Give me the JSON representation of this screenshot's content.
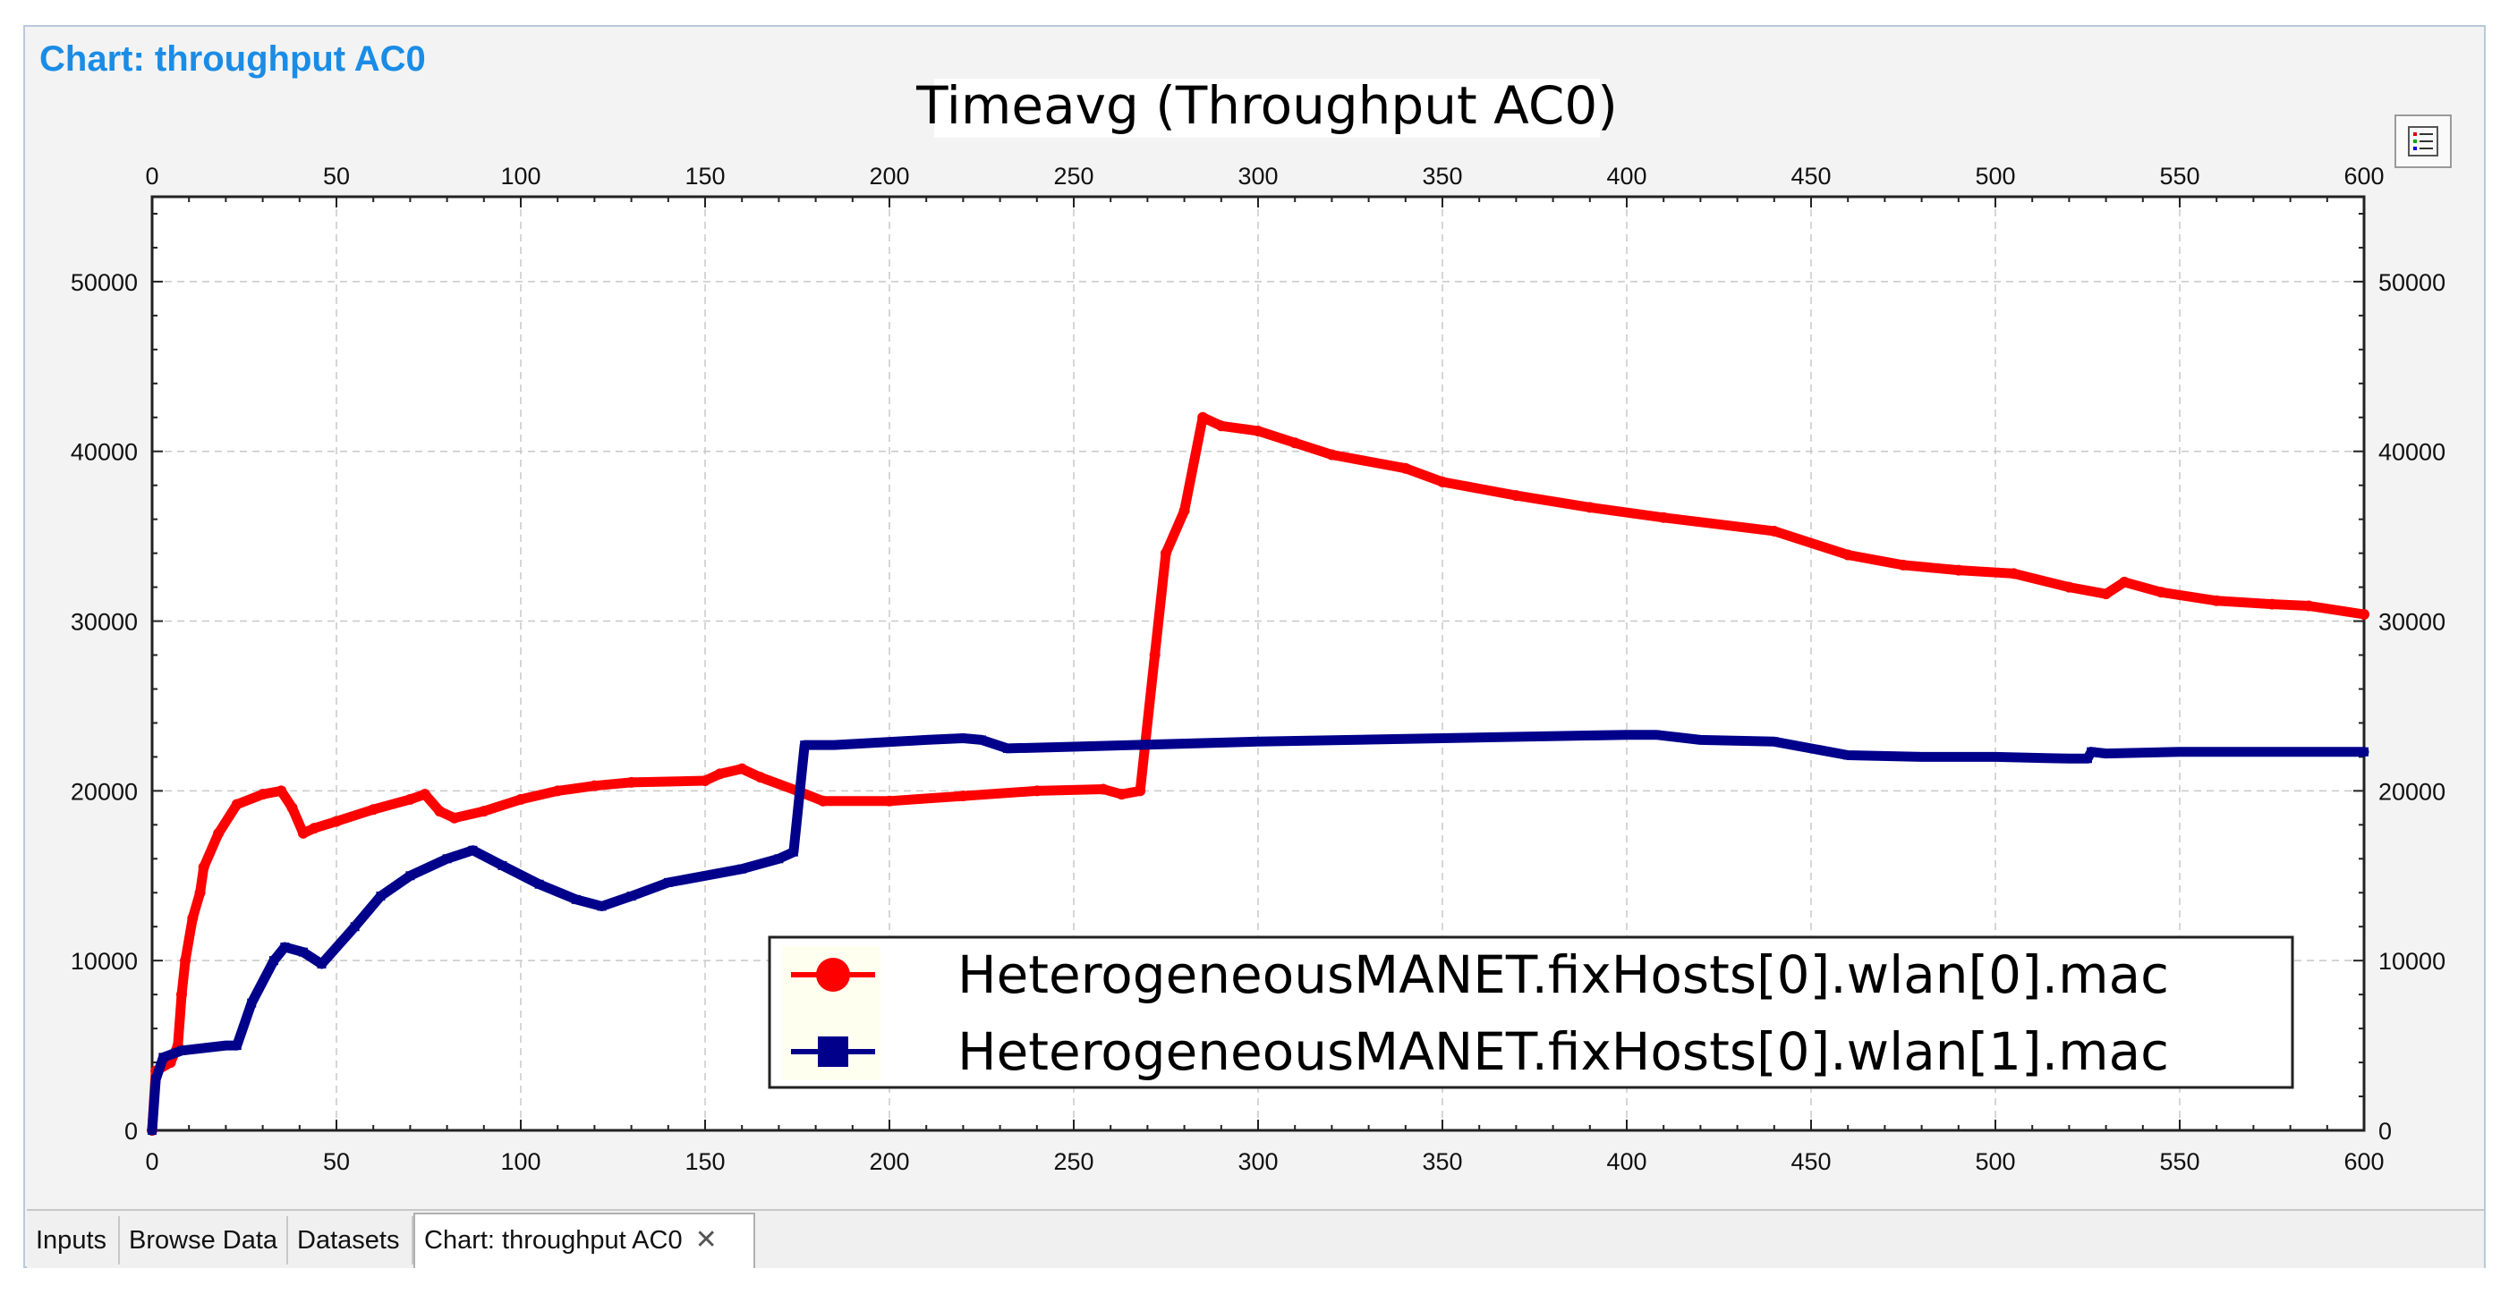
{
  "panel_title": "Chart: throughput AC0",
  "tabs": [
    {
      "label": "Inputs"
    },
    {
      "label": "Browse Data"
    },
    {
      "label": "Datasets"
    },
    {
      "label": "Chart: throughput AC0",
      "active": true
    }
  ],
  "legend_button_icon": "legend-list-icon",
  "close_icon": "close-x-icon",
  "colors": {
    "series0": "#ff0000",
    "series1": "#00008b",
    "grid": "#c8c8c8",
    "plot_bg": "#ffffff"
  },
  "chart_data": {
    "type": "line",
    "title": "Timeavg (Throughput AC0)",
    "xlabel": "",
    "ylabel": "",
    "xlim": [
      0,
      600
    ],
    "ylim": [
      0,
      55000
    ],
    "x_ticks": [
      0,
      50,
      100,
      150,
      200,
      250,
      300,
      350,
      400,
      450,
      500,
      550,
      600
    ],
    "y_ticks": [
      0,
      10000,
      20000,
      30000,
      40000,
      50000
    ],
    "grid": true,
    "legend_position": "bottom-right",
    "series": [
      {
        "name": "HeterogeneousMANET.fixHosts[0].wlan[0].mac",
        "color": "#ff0000",
        "marker": "circle",
        "points": [
          [
            0,
            0
          ],
          [
            1,
            3500
          ],
          [
            5,
            4000
          ],
          [
            7,
            5000
          ],
          [
            8,
            8000
          ],
          [
            9,
            10000
          ],
          [
            11,
            12500
          ],
          [
            13,
            14000
          ],
          [
            14,
            15500
          ],
          [
            18,
            17500
          ],
          [
            23,
            19200
          ],
          [
            30,
            19800
          ],
          [
            35,
            20000
          ],
          [
            38,
            19000
          ],
          [
            41,
            17500
          ],
          [
            44,
            17800
          ],
          [
            50,
            18200
          ],
          [
            60,
            18900
          ],
          [
            70,
            19500
          ],
          [
            74,
            19800
          ],
          [
            78,
            18800
          ],
          [
            82,
            18400
          ],
          [
            90,
            18800
          ],
          [
            100,
            19500
          ],
          [
            110,
            20000
          ],
          [
            120,
            20300
          ],
          [
            130,
            20500
          ],
          [
            150,
            20600
          ],
          [
            154,
            21000
          ],
          [
            160,
            21300
          ],
          [
            165,
            20800
          ],
          [
            175,
            20000
          ],
          [
            182,
            19400
          ],
          [
            200,
            19400
          ],
          [
            220,
            19700
          ],
          [
            240,
            20000
          ],
          [
            258,
            20100
          ],
          [
            263,
            19800
          ],
          [
            268,
            20000
          ],
          [
            272,
            28000
          ],
          [
            275,
            34000
          ],
          [
            280,
            36500
          ],
          [
            285,
            42000
          ],
          [
            290,
            41500
          ],
          [
            300,
            41200
          ],
          [
            310,
            40500
          ],
          [
            320,
            39800
          ],
          [
            340,
            39000
          ],
          [
            350,
            38200
          ],
          [
            370,
            37400
          ],
          [
            390,
            36700
          ],
          [
            410,
            36100
          ],
          [
            440,
            35300
          ],
          [
            460,
            33900
          ],
          [
            475,
            33300
          ],
          [
            490,
            33000
          ],
          [
            505,
            32800
          ],
          [
            520,
            32000
          ],
          [
            530,
            31600
          ],
          [
            535,
            32300
          ],
          [
            545,
            31700
          ],
          [
            560,
            31200
          ],
          [
            575,
            31000
          ],
          [
            585,
            30900
          ],
          [
            600,
            30400
          ]
        ]
      },
      {
        "name": "HeterogeneousMANET.fixHosts[0].wlan[1].mac",
        "color": "#00008b",
        "marker": "square",
        "points": [
          [
            0,
            0
          ],
          [
            1,
            3000
          ],
          [
            3,
            4300
          ],
          [
            8,
            4700
          ],
          [
            20,
            5000
          ],
          [
            23,
            5000
          ],
          [
            27,
            7500
          ],
          [
            33,
            10000
          ],
          [
            36,
            10800
          ],
          [
            41,
            10500
          ],
          [
            46,
            9800
          ],
          [
            55,
            12000
          ],
          [
            62,
            13800
          ],
          [
            70,
            15000
          ],
          [
            80,
            16000
          ],
          [
            87,
            16500
          ],
          [
            95,
            15600
          ],
          [
            105,
            14500
          ],
          [
            115,
            13600
          ],
          [
            122,
            13200
          ],
          [
            130,
            13800
          ],
          [
            140,
            14600
          ],
          [
            160,
            15400
          ],
          [
            170,
            16000
          ],
          [
            174,
            16400
          ],
          [
            177,
            22700
          ],
          [
            185,
            22700
          ],
          [
            210,
            23000
          ],
          [
            220,
            23100
          ],
          [
            225,
            23000
          ],
          [
            232,
            22500
          ],
          [
            250,
            22600
          ],
          [
            300,
            22900
          ],
          [
            350,
            23100
          ],
          [
            400,
            23300
          ],
          [
            408,
            23300
          ],
          [
            420,
            23000
          ],
          [
            440,
            22900
          ],
          [
            460,
            22100
          ],
          [
            480,
            22000
          ],
          [
            500,
            22000
          ],
          [
            520,
            21900
          ],
          [
            525,
            21900
          ],
          [
            526,
            22300
          ],
          [
            530,
            22200
          ],
          [
            550,
            22300
          ],
          [
            570,
            22300
          ],
          [
            600,
            22300
          ]
        ]
      }
    ]
  }
}
